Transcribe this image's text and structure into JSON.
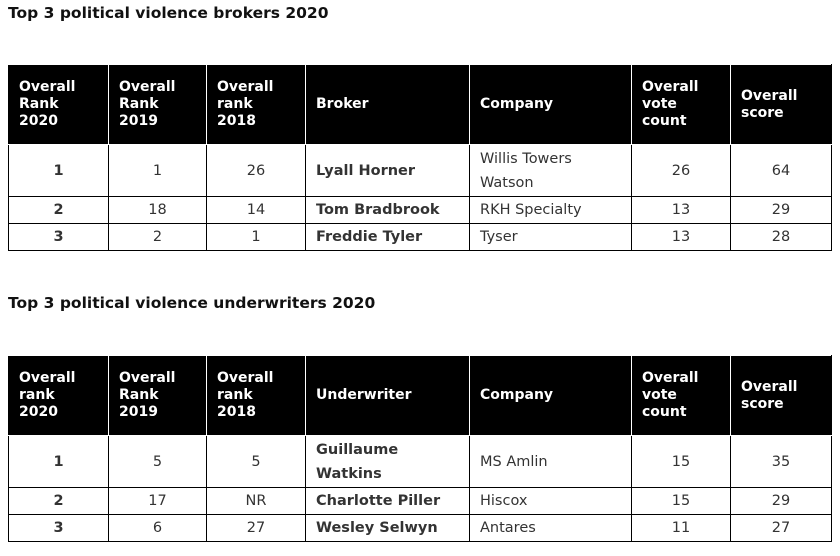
{
  "brokers": {
    "title": "Top 3 political violence brokers 2020",
    "headers": [
      "Overall Rank 2020",
      "Overall Rank 2019",
      "Overall rank 2018",
      "Broker",
      "Company",
      "Overall vote count",
      "Overall score"
    ],
    "rows": [
      {
        "rank2020": "1",
        "rank2019": "1",
        "rank2018": "26",
        "name": "Lyall Horner",
        "company": "Willis Towers Watson",
        "votes": "26",
        "score": "64"
      },
      {
        "rank2020": "2",
        "rank2019": "18",
        "rank2018": "14",
        "name": "Tom Bradbrook",
        "company": "RKH Specialty",
        "votes": "13",
        "score": "29"
      },
      {
        "rank2020": "3",
        "rank2019": "2",
        "rank2018": "1",
        "name": "Freddie Tyler",
        "company": "Tyser",
        "votes": "13",
        "score": "28"
      }
    ]
  },
  "underwriters": {
    "title": "Top 3 political violence underwriters 2020",
    "headers": [
      "Overall rank 2020",
      "Overall Rank 2019",
      "Overall rank 2018",
      "Underwriter",
      "Company",
      "Overall vote count",
      "Overall score"
    ],
    "rows": [
      {
        "rank2020": "1",
        "rank2019": "5",
        "rank2018": "5",
        "name": "Guillaume Watkins",
        "company": "MS Amlin",
        "votes": "15",
        "score": "35"
      },
      {
        "rank2020": "2",
        "rank2019": "17",
        "rank2018": "NR",
        "name": "Charlotte Piller",
        "company": "Hiscox",
        "votes": "15",
        "score": "29"
      },
      {
        "rank2020": "3",
        "rank2019": "6",
        "rank2018": "27",
        "name": "Wesley Selwyn",
        "company": "Antares",
        "votes": "11",
        "score": "27"
      }
    ]
  }
}
